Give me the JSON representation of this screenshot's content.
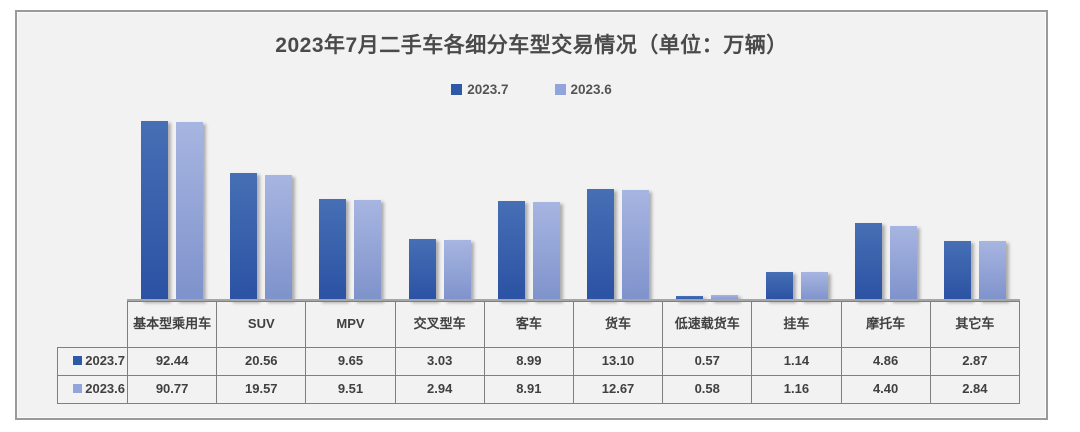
{
  "title": "2023年7月二手车各细分车型交易情况（单位：万辆）",
  "legend": {
    "items": [
      {
        "label": "2023.7"
      },
      {
        "label": "2023.6"
      }
    ]
  },
  "chart_data": {
    "type": "bar",
    "title": "2023年7月二手车各细分车型交易情况（单位：万辆）",
    "unit": "万辆",
    "categories": [
      "基本型乘用车",
      "SUV",
      "MPV",
      "交叉型车",
      "客车",
      "货车",
      "低速载货车",
      "挂车",
      "摩托车",
      "其它车"
    ],
    "series": [
      {
        "name": "2023.7",
        "values": [
          92.44,
          20.56,
          9.65,
          3.03,
          8.99,
          13.1,
          0.57,
          1.14,
          4.86,
          2.87
        ]
      },
      {
        "name": "2023.6",
        "values": [
          90.77,
          19.57,
          9.51,
          2.94,
          8.91,
          12.67,
          0.58,
          1.16,
          4.4,
          2.84
        ]
      }
    ],
    "y_scale": "log",
    "y_min": 0.49,
    "grid": false,
    "legend_position": "top",
    "data_table_shown": true
  },
  "colors": {
    "series1": "#2E59A7",
    "series1_gradient_top": "#466FB5",
    "series1_gradient_bottom": "#2B52A3",
    "series2": "#91A4DB",
    "series2_gradient_top": "#A7B5E1",
    "series2_gradient_bottom": "#7E92CB",
    "chart_background": "#F2F2F3",
    "axis_line": "#A6A6A6",
    "table_border": "#7F7F7F",
    "text": "#404040"
  }
}
